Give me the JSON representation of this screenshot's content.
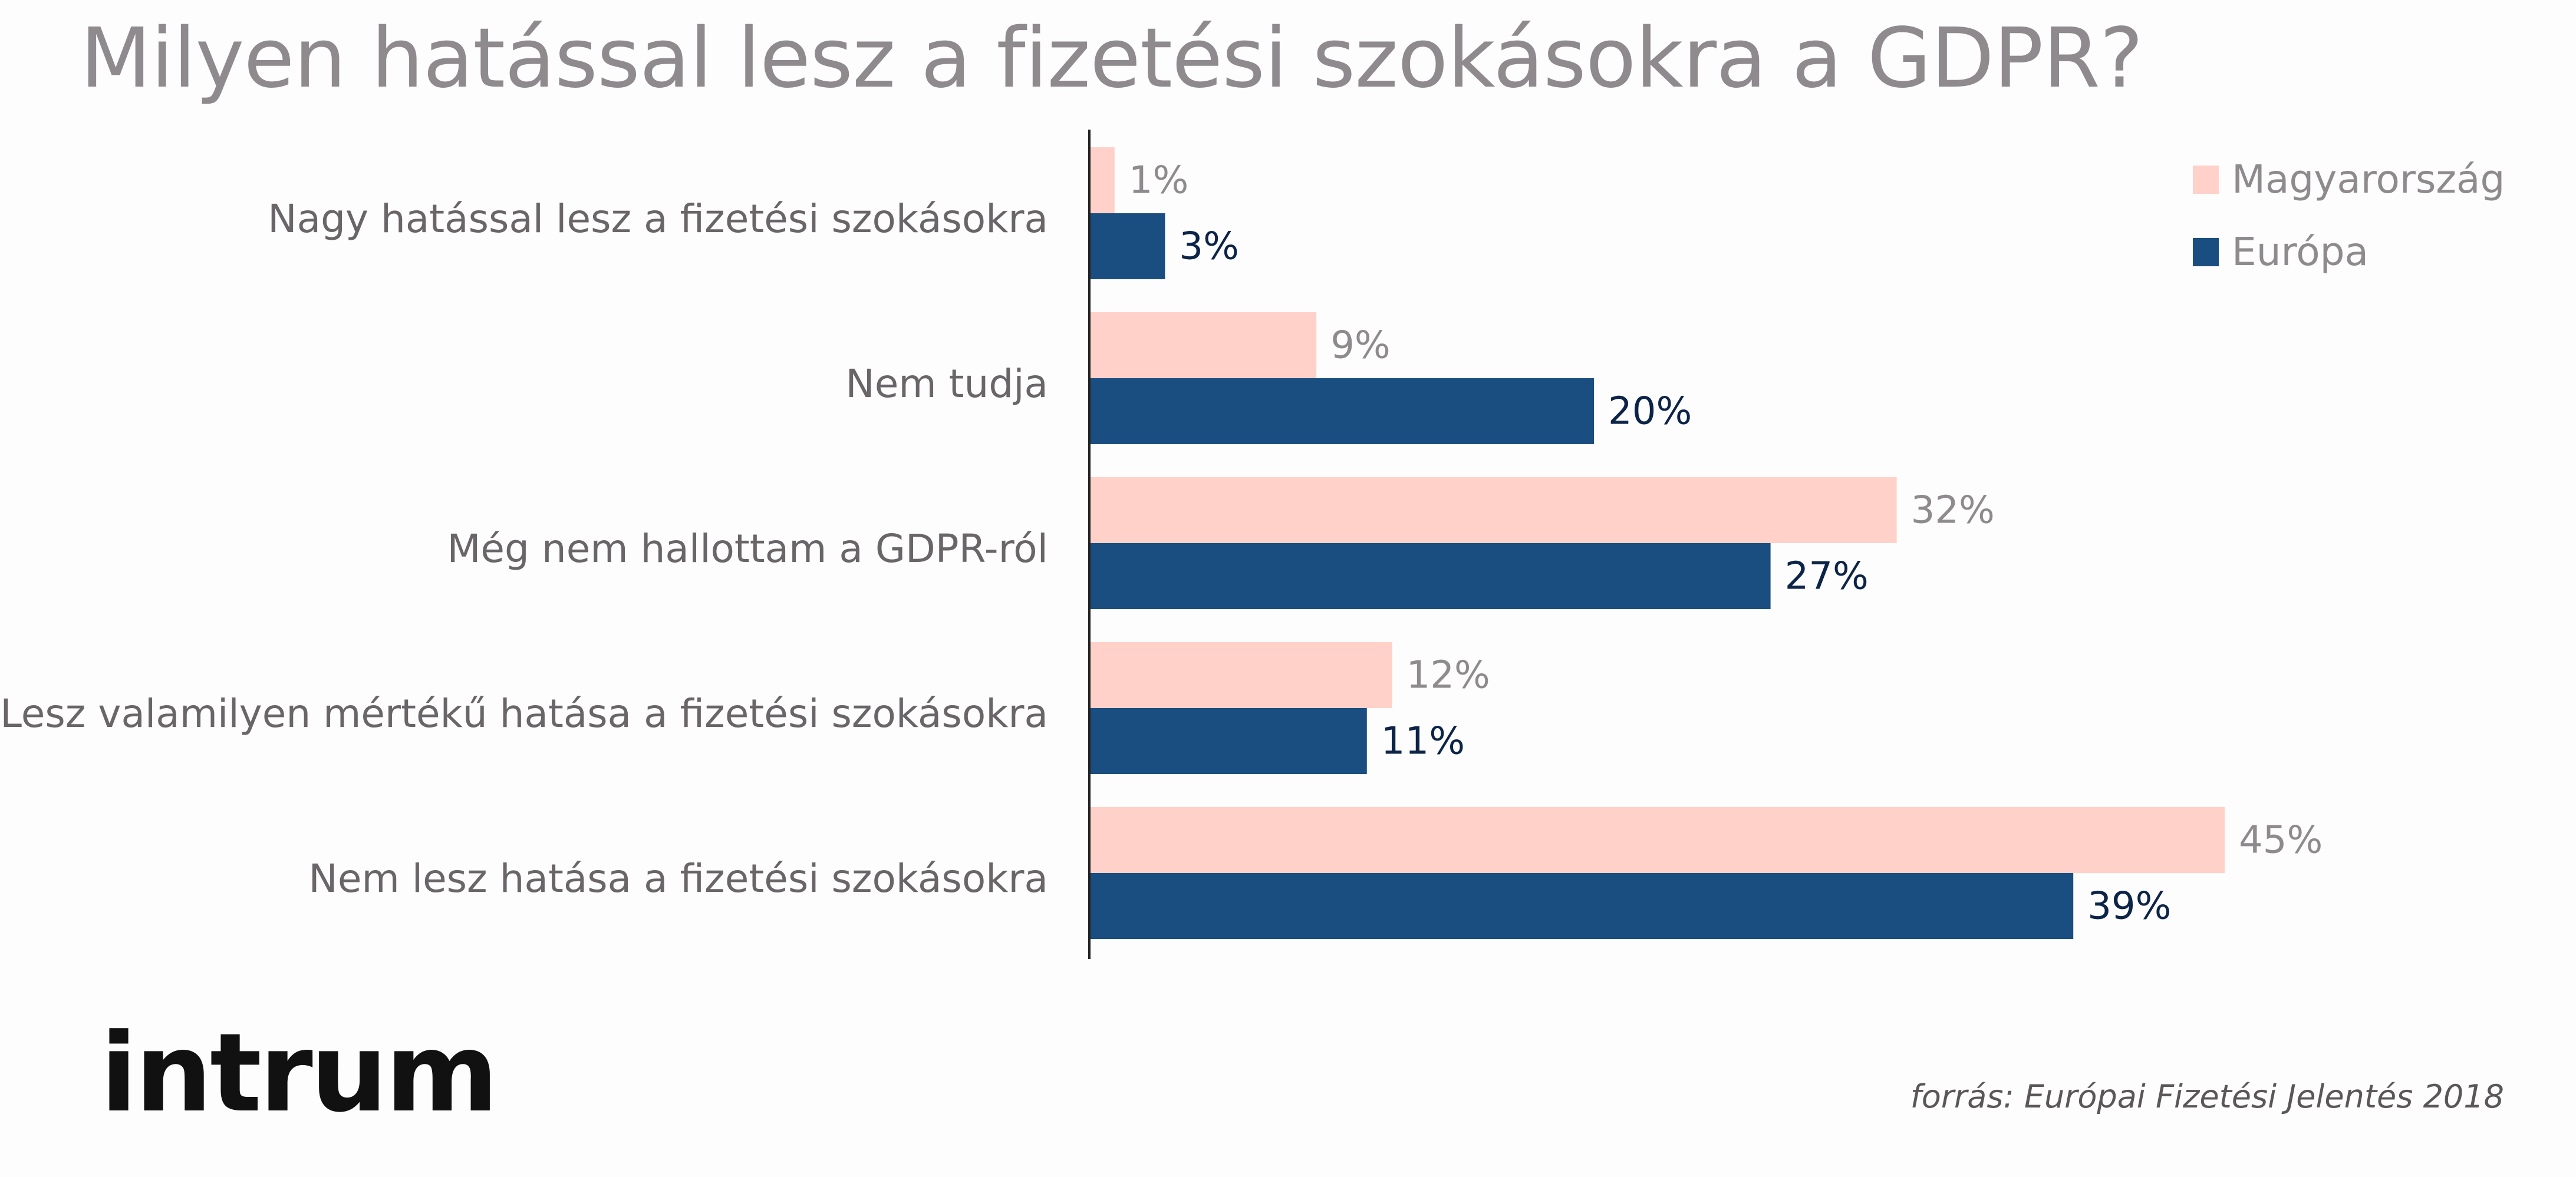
{
  "title": "Milyen hatással lesz a fizetési szokásokra a GDPR?",
  "logo_text": "intrum",
  "source": "forrás: Európai Fizetési Jelentés 2018",
  "colors": {
    "hungary": "#ffd1c8",
    "europe": "#1a4e80",
    "hungary_label": "#8f8a8d",
    "europe_label": "#0b2447",
    "category_label": "#6a6568",
    "axis": "#222222"
  },
  "chart_data": {
    "type": "bar",
    "orientation": "horizontal",
    "title": "Milyen hatással lesz a fizetési szokásokra a GDPR?",
    "categories": [
      "Nagy hatással lesz a fizetési szokásokra",
      "Nem tudja",
      "Még nem hallottam a GDPR-ról",
      "Lesz valamilyen mértékű hatása a fizetési szokásokra",
      "Nem lesz hatása a fizetési szokásokra"
    ],
    "series": [
      {
        "name": "Magyarország",
        "values": [
          1,
          9,
          32,
          12,
          45
        ],
        "labels": [
          "1%",
          "9%",
          "32%",
          "12%",
          "45%"
        ],
        "color": "#ffd1c8"
      },
      {
        "name": "Európa",
        "values": [
          3,
          20,
          27,
          11,
          39
        ],
        "labels": [
          "3%",
          "20%",
          "27%",
          "11%",
          "39%"
        ],
        "color": "#1a4e80"
      }
    ],
    "xlim": [
      0,
      50
    ],
    "legend": "top-right",
    "grid": false
  }
}
